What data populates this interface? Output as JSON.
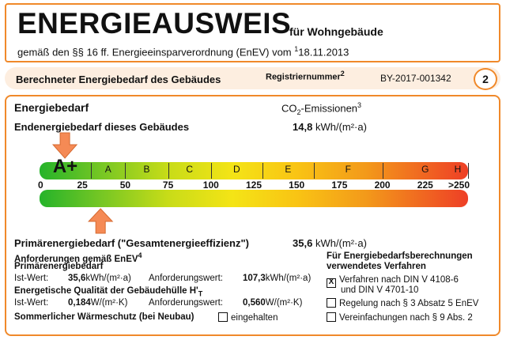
{
  "header": {
    "title": "ENERGIEAUSWEIS",
    "title_suffix": "für Wohngebäude",
    "subtitle": "gemäß den §§ 16 ff. Energieeinsparverordnung (EnEV) vom",
    "subtitle_note": "1",
    "subtitle_date": "18.11.2013"
  },
  "section_bar": {
    "label": "Berechneter Energiebedarf des Gebäudes",
    "reg_label": "Registriernummer",
    "reg_note": "2",
    "reg_value": "BY-2017-001342",
    "page_number": "2"
  },
  "energiebedarf": {
    "heading": "Energiebedarf",
    "co2_prefix": "CO",
    "co2_sub": "2",
    "co2_suffix": "-Emissionen",
    "co2_note": "3",
    "end_label": "Endenergiebedarf dieses Gebäudes",
    "end_value": "14,8",
    "end_unit": "kWh/(m²·a)",
    "end_marker": 14.8,
    "classes": [
      "A+",
      "A",
      "B",
      "C",
      "D",
      "E",
      "F",
      "G",
      "H"
    ],
    "scale_labels": [
      "0",
      "25",
      "50",
      "75",
      "100",
      "125",
      "150",
      "175",
      "200",
      "225",
      ">250"
    ],
    "primary_label": "Primärenergiebedarf (\"Gesamtenergieeffizienz\")",
    "primary_value": "35,6",
    "primary_unit": "kWh/(m²·a)",
    "primary_marker": 35.6
  },
  "anforderungen": {
    "heading": "Anforderungen gemäß EnEV",
    "heading_note": "4",
    "sub_heading": "Primärenergiebedarf",
    "ist_label": "Ist-Wert:",
    "ist_value": "35,6",
    "ist_unit": "kWh/(m²·a)",
    "anf_label": "Anforderungswert:",
    "anf_value": "107,3",
    "anf_unit": "kWh/(m²·a)",
    "huelle_heading": "Energetische Qualität der Gebäudehülle H'",
    "huelle_sub": "T",
    "ist2_label": "Ist-Wert:",
    "ist2_value": "0,184",
    "ist2_unit": "W/(m²·K)",
    "anf2_label": "Anforderungswert:",
    "anf2_value": "0,560",
    "anf2_unit": "W/(m²·K)",
    "summer_label": "Sommerlicher Wärmeschutz (bei Neubau)",
    "summer_check": "eingehalten"
  },
  "verfahren": {
    "heading1": "Für Energiebedarfsberechnungen",
    "heading2": "verwendetes Verfahren",
    "opt1_line1": "Verfahren nach DIN V 4108-6",
    "opt1_line2": "und DIN V 4701-10",
    "opt1_checked": "X",
    "opt2": "Regelung nach § 3 Absatz 5 EnEV",
    "opt3": "Vereinfachungen nach § 9 Abs. 2"
  }
}
